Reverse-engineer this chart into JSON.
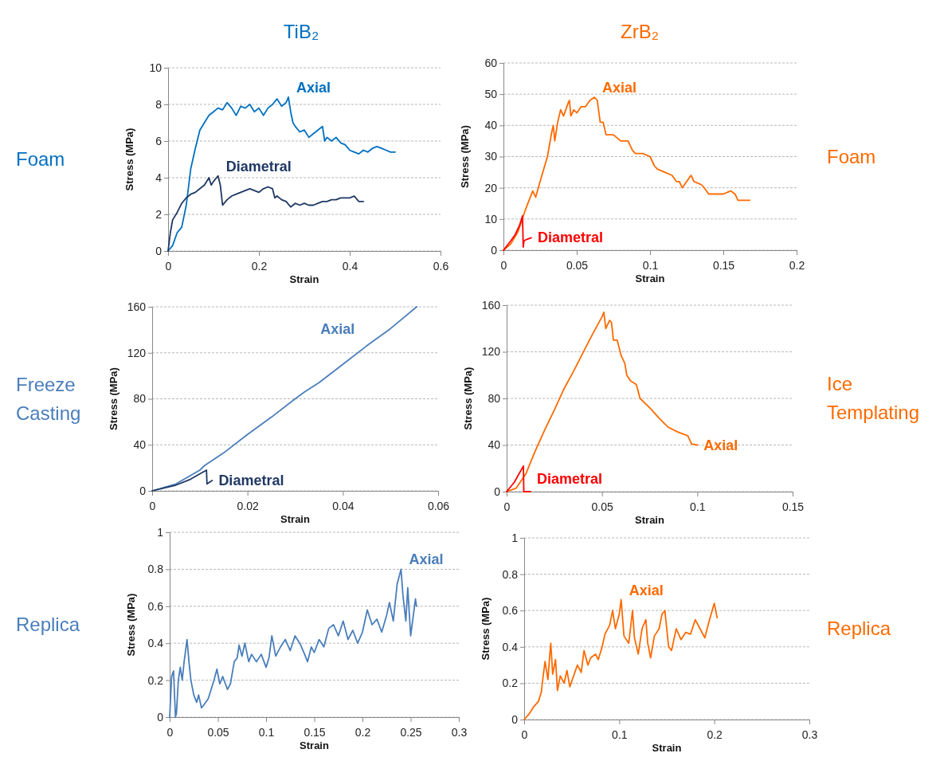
{
  "chart_data": [
    {
      "type": "line",
      "title": "TiB₂",
      "xlabel": "Strain",
      "ylabel": "Stress (MPa)",
      "annotations": [
        "Foam"
      ],
      "xlim": [
        0,
        0.6
      ],
      "ylim": [
        0,
        10
      ],
      "xticks": [
        0,
        0.2,
        0.4,
        0.6
      ],
      "yticks": [
        0,
        2,
        4,
        6,
        8,
        10
      ],
      "grid": "y",
      "series": [
        {
          "name": "Axial",
          "color": "#0070c0",
          "x": [
            0,
            0.01,
            0.02,
            0.03,
            0.04,
            0.05,
            0.06,
            0.07,
            0.08,
            0.09,
            0.1,
            0.11,
            0.12,
            0.13,
            0.14,
            0.15,
            0.16,
            0.17,
            0.18,
            0.19,
            0.2,
            0.21,
            0.22,
            0.23,
            0.24,
            0.25,
            0.26,
            0.265,
            0.27,
            0.275,
            0.28,
            0.29,
            0.3,
            0.31,
            0.32,
            0.33,
            0.34,
            0.345,
            0.35,
            0.36,
            0.37,
            0.38,
            0.39,
            0.4,
            0.41,
            0.42,
            0.43,
            0.44,
            0.45,
            0.46,
            0.47,
            0.48,
            0.49,
            0.5
          ],
          "values": [
            0,
            0.3,
            1,
            1.3,
            2.5,
            4.5,
            5.6,
            6.6,
            7,
            7.4,
            7.6,
            7.8,
            7.7,
            8.1,
            7.8,
            7.4,
            7.9,
            7.8,
            8,
            7.6,
            7.8,
            7.4,
            7.8,
            8,
            8.3,
            7.9,
            8.1,
            8.4,
            7.6,
            7,
            6.8,
            6.5,
            6.6,
            6.2,
            6.4,
            6.6,
            6.8,
            6,
            6.2,
            6,
            6.2,
            5.9,
            5.8,
            5.5,
            5.4,
            5.3,
            5.5,
            5.4,
            5.6,
            5.7,
            5.6,
            5.5,
            5.4,
            5.4
          ]
        },
        {
          "name": "Diametral",
          "color": "#1f3864",
          "x": [
            0,
            0.005,
            0.01,
            0.02,
            0.03,
            0.04,
            0.05,
            0.06,
            0.07,
            0.08,
            0.09,
            0.095,
            0.1,
            0.11,
            0.115,
            0.12,
            0.13,
            0.14,
            0.15,
            0.16,
            0.17,
            0.18,
            0.19,
            0.2,
            0.21,
            0.22,
            0.23,
            0.235,
            0.24,
            0.25,
            0.26,
            0.27,
            0.28,
            0.29,
            0.3,
            0.31,
            0.32,
            0.33,
            0.34,
            0.35,
            0.36,
            0.37,
            0.38,
            0.39,
            0.4,
            0.41,
            0.42,
            0.43
          ],
          "values": [
            0,
            1,
            1.7,
            2.1,
            2.6,
            2.9,
            3.1,
            3.2,
            3.4,
            3.6,
            4,
            3.6,
            3.8,
            4.1,
            3.6,
            2.5,
            2.8,
            3,
            3.1,
            3.2,
            3.3,
            3.4,
            3.3,
            3.2,
            3.4,
            3.5,
            3.4,
            2.9,
            3,
            2.8,
            2.7,
            2.4,
            2.6,
            2.5,
            2.6,
            2.5,
            2.5,
            2.6,
            2.7,
            2.7,
            2.8,
            2.8,
            2.9,
            2.9,
            2.9,
            3,
            2.7,
            2.7
          ]
        }
      ]
    },
    {
      "type": "line",
      "title": "ZrB₂",
      "xlabel": "Strain",
      "ylabel": "Stress (MPa)",
      "annotations": [
        "Foam"
      ],
      "xlim": [
        0,
        0.2
      ],
      "ylim": [
        0,
        60
      ],
      "xticks": [
        0,
        0.05,
        0.1,
        0.15,
        0.2
      ],
      "yticks": [
        0,
        10,
        20,
        30,
        40,
        50,
        60
      ],
      "grid": "y",
      "series": [
        {
          "name": "Axial",
          "color": "#ff6a00",
          "x": [
            0,
            0.005,
            0.01,
            0.015,
            0.02,
            0.022,
            0.025,
            0.03,
            0.033,
            0.034,
            0.035,
            0.037,
            0.039,
            0.041,
            0.044,
            0.045,
            0.046,
            0.048,
            0.05,
            0.053,
            0.056,
            0.059,
            0.062,
            0.064,
            0.066,
            0.068,
            0.07,
            0.075,
            0.08,
            0.085,
            0.088,
            0.09,
            0.095,
            0.1,
            0.103,
            0.105,
            0.11,
            0.115,
            0.118,
            0.12,
            0.122,
            0.125,
            0.128,
            0.13,
            0.135,
            0.137,
            0.14,
            0.145,
            0.15,
            0.155,
            0.158,
            0.16,
            0.165,
            0.168
          ],
          "values": [
            0,
            2,
            6,
            13,
            19,
            17,
            22,
            30,
            38,
            40,
            35,
            41,
            45,
            43,
            47,
            48,
            43,
            45,
            44,
            46,
            46,
            48,
            49,
            48,
            41,
            41,
            37,
            37,
            35,
            35,
            32,
            31,
            31,
            30,
            27,
            26,
            25,
            24,
            22,
            22,
            20,
            22,
            24,
            22,
            21,
            20,
            18,
            18,
            18,
            19,
            18,
            16,
            16,
            16
          ]
        },
        {
          "name": "Diametral",
          "color": "#ff0000",
          "x": [
            0,
            0.005,
            0.008,
            0.011,
            0.013,
            0.0135,
            0.014,
            0.016,
            0.019
          ],
          "values": [
            0,
            3,
            5,
            8,
            11,
            1,
            3,
            3.5,
            4
          ]
        }
      ]
    },
    {
      "type": "line",
      "xlabel": "Strain",
      "ylabel": "Stress (MPa)",
      "annotations": [
        "Freeze Casting"
      ],
      "xlim": [
        0,
        0.06
      ],
      "ylim": [
        0,
        160
      ],
      "xticks": [
        0,
        0.02,
        0.04,
        0.06
      ],
      "yticks": [
        0,
        40,
        80,
        120,
        160
      ],
      "grid": "y",
      "series": [
        {
          "name": "Axial",
          "color": "#4a7ebb",
          "x": [
            0,
            0.005,
            0.01,
            0.011,
            0.015,
            0.02,
            0.025,
            0.03,
            0.032,
            0.035,
            0.04,
            0.045,
            0.05,
            0.0555
          ],
          "values": [
            0,
            6,
            18,
            22,
            33,
            49,
            64,
            80,
            86,
            94,
            110,
            126,
            141,
            160
          ]
        },
        {
          "name": "Diametral",
          "color": "#1f3864",
          "x": [
            0,
            0.005,
            0.008,
            0.0114,
            0.0115,
            0.0126
          ],
          "values": [
            0,
            5,
            10,
            18,
            6,
            9
          ]
        }
      ]
    },
    {
      "type": "line",
      "xlabel": "Strain",
      "ylabel": "Stress (MPa)",
      "annotations": [
        "Ice Templating"
      ],
      "xlim": [
        0,
        0.15
      ],
      "ylim": [
        0,
        160
      ],
      "xticks": [
        0,
        0.05,
        0.1,
        0.15
      ],
      "yticks": [
        0,
        40,
        80,
        120,
        160
      ],
      "grid": "y",
      "series": [
        {
          "name": "Axial",
          "color": "#ff6a00",
          "x": [
            0,
            0.005,
            0.01,
            0.015,
            0.02,
            0.025,
            0.03,
            0.035,
            0.04,
            0.045,
            0.05,
            0.051,
            0.052,
            0.054,
            0.055,
            0.056,
            0.058,
            0.06,
            0.062,
            0.063,
            0.065,
            0.068,
            0.07,
            0.075,
            0.08,
            0.083,
            0.085,
            0.09,
            0.095,
            0.097,
            0.1
          ],
          "values": [
            0,
            3,
            15,
            35,
            53,
            70,
            88,
            103,
            119,
            135,
            150,
            154,
            140,
            147,
            145,
            130,
            130,
            117,
            110,
            100,
            95,
            92,
            80,
            72,
            63,
            58,
            55,
            51,
            48,
            41,
            40
          ]
        },
        {
          "name": "Diametral",
          "color": "#ff0000",
          "x": [
            0,
            0.004,
            0.0088,
            0.009,
            0.0125
          ],
          "values": [
            0,
            8,
            22,
            0,
            0
          ]
        }
      ]
    },
    {
      "type": "line",
      "xlabel": "Strain",
      "ylabel": "Stress (MPa)",
      "annotations": [
        "Replica"
      ],
      "xlim": [
        0,
        0.3
      ],
      "ylim": [
        0,
        1
      ],
      "xticks": [
        0,
        0.05,
        0.1,
        0.15,
        0.2,
        0.25,
        0.3
      ],
      "yticks": [
        0,
        0.2,
        0.4,
        0.6,
        0.8,
        1
      ],
      "grid": "y",
      "series": [
        {
          "name": "Axial",
          "color": "#4a7ebb",
          "x": [
            0,
            0.002,
            0.004,
            0.006,
            0.007,
            0.009,
            0.011,
            0.013,
            0.015,
            0.017,
            0.018,
            0.02,
            0.022,
            0.025,
            0.028,
            0.03,
            0.033,
            0.036,
            0.04,
            0.043,
            0.046,
            0.049,
            0.052,
            0.055,
            0.06,
            0.063,
            0.067,
            0.07,
            0.072,
            0.075,
            0.078,
            0.082,
            0.085,
            0.09,
            0.095,
            0.1,
            0.103,
            0.106,
            0.11,
            0.115,
            0.12,
            0.125,
            0.13,
            0.135,
            0.14,
            0.143,
            0.147,
            0.15,
            0.155,
            0.16,
            0.165,
            0.17,
            0.175,
            0.18,
            0.185,
            0.19,
            0.195,
            0.2,
            0.205,
            0.21,
            0.215,
            0.22,
            0.225,
            0.228,
            0.232,
            0.236,
            0.24,
            0.242,
            0.245,
            0.247,
            0.25,
            0.252,
            0.255,
            0.256
          ],
          "values": [
            0,
            0.22,
            0.25,
            0,
            0.02,
            0.2,
            0.27,
            0.2,
            0.3,
            0.38,
            0.42,
            0.3,
            0.2,
            0.12,
            0.08,
            0.12,
            0.05,
            0.07,
            0.1,
            0.15,
            0.2,
            0.26,
            0.18,
            0.22,
            0.15,
            0.18,
            0.3,
            0.32,
            0.39,
            0.33,
            0.4,
            0.3,
            0.34,
            0.3,
            0.34,
            0.27,
            0.32,
            0.44,
            0.33,
            0.38,
            0.42,
            0.36,
            0.44,
            0.4,
            0.34,
            0.3,
            0.38,
            0.35,
            0.42,
            0.38,
            0.48,
            0.5,
            0.44,
            0.52,
            0.42,
            0.47,
            0.4,
            0.46,
            0.58,
            0.5,
            0.53,
            0.46,
            0.55,
            0.62,
            0.52,
            0.72,
            0.8,
            0.66,
            0.52,
            0.7,
            0.44,
            0.52,
            0.64,
            0.6
          ]
        }
      ]
    },
    {
      "type": "line",
      "xlabel": "Strain",
      "ylabel": "Stress (MPa)",
      "annotations": [
        "Replica"
      ],
      "xlim": [
        0,
        0.3
      ],
      "ylim": [
        0,
        1
      ],
      "xticks": [
        0,
        0.1,
        0.2,
        0.3
      ],
      "yticks": [
        0,
        0.2,
        0.4,
        0.6,
        0.8,
        1
      ],
      "grid": "y",
      "series": [
        {
          "name": "Axial",
          "color": "#ff6a00",
          "x": [
            0,
            0.005,
            0.01,
            0.015,
            0.018,
            0.02,
            0.022,
            0.025,
            0.027,
            0.028,
            0.03,
            0.033,
            0.035,
            0.038,
            0.042,
            0.045,
            0.048,
            0.052,
            0.056,
            0.06,
            0.063,
            0.067,
            0.07,
            0.075,
            0.078,
            0.082,
            0.085,
            0.09,
            0.093,
            0.096,
            0.1,
            0.102,
            0.105,
            0.11,
            0.114,
            0.116,
            0.12,
            0.124,
            0.128,
            0.13,
            0.133,
            0.137,
            0.142,
            0.145,
            0.148,
            0.152,
            0.155,
            0.16,
            0.165,
            0.17,
            0.175,
            0.18,
            0.185,
            0.19,
            0.195,
            0.2,
            0.203
          ],
          "values": [
            0,
            0.03,
            0.07,
            0.1,
            0.15,
            0.24,
            0.32,
            0.22,
            0.36,
            0.42,
            0.25,
            0.33,
            0.16,
            0.24,
            0.2,
            0.27,
            0.18,
            0.24,
            0.3,
            0.26,
            0.38,
            0.3,
            0.34,
            0.36,
            0.33,
            0.4,
            0.47,
            0.52,
            0.6,
            0.5,
            0.58,
            0.66,
            0.46,
            0.42,
            0.6,
            0.45,
            0.36,
            0.5,
            0.55,
            0.42,
            0.34,
            0.46,
            0.5,
            0.58,
            0.6,
            0.4,
            0.38,
            0.5,
            0.44,
            0.48,
            0.47,
            0.55,
            0.5,
            0.45,
            0.55,
            0.64,
            0.56
          ]
        }
      ]
    }
  ]
}
